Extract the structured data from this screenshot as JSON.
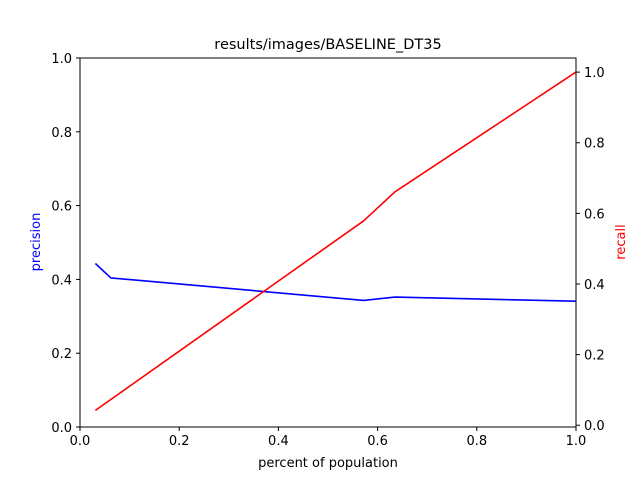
{
  "chart_data": {
    "type": "line",
    "title": "results/images/BASELINE_DT35",
    "xlabel": "percent of population",
    "ylabel_left": "precision",
    "ylabel_right": "recall",
    "xlim": [
      0.0,
      1.0
    ],
    "ylim_left": [
      0.0,
      1.0
    ],
    "ylim_right": [
      -0.005,
      1.04
    ],
    "xticks": [
      "0.0",
      "0.2",
      "0.4",
      "0.6",
      "0.8",
      "1.0"
    ],
    "yticks_left": [
      "0.0",
      "0.2",
      "0.4",
      "0.6",
      "0.8",
      "1.0"
    ],
    "yticks_right": [
      "0.0",
      "0.2",
      "0.4",
      "0.6",
      "0.8",
      "1.0"
    ],
    "grid": false,
    "legend": "none",
    "label_colors": {
      "left": "#0000ff",
      "right": "#ff0000"
    },
    "series": [
      {
        "axis": "left",
        "color": "#0000ff",
        "x": [
          0.031,
          0.062,
          0.572,
          0.635,
          1.0
        ],
        "y": [
          0.443,
          0.404,
          0.343,
          0.352,
          0.341
        ]
      },
      {
        "axis": "right",
        "color": "#ff0000",
        "x": [
          0.031,
          0.062,
          0.572,
          0.635,
          1.0
        ],
        "y": [
          0.042,
          0.073,
          0.579,
          0.661,
          1.0
        ]
      }
    ]
  }
}
